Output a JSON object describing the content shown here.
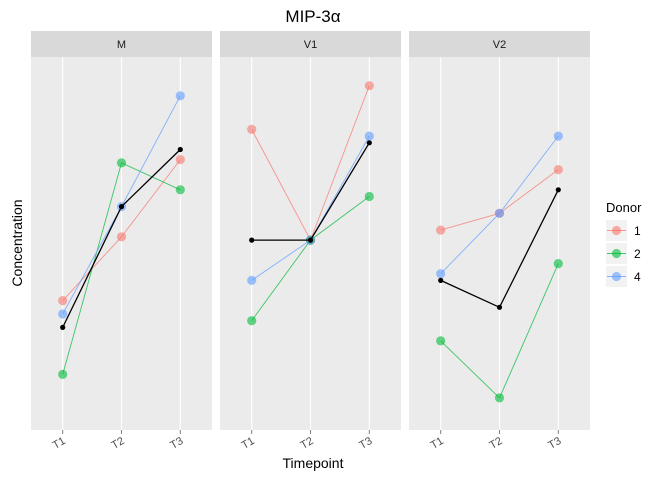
{
  "chart_data": {
    "type": "line",
    "title": "MIP-3α",
    "xlabel": "Timepoint",
    "ylabel": "Concentration",
    "categories": [
      "T1",
      "T2",
      "T3"
    ],
    "ylim": [
      0,
      100
    ],
    "grid": true,
    "legend": {
      "title": "Donor",
      "placement": "right"
    },
    "panels": [
      {
        "name": "M",
        "series": [
          {
            "name": "1",
            "color": "#F8766D",
            "values": [
              33,
              52,
              75
            ]
          },
          {
            "name": "2",
            "color": "#00BA38",
            "values": [
              11,
              74,
              66
            ]
          },
          {
            "name": "4",
            "color": "#619CFF",
            "values": [
              29,
              61,
              94
            ]
          },
          {
            "color": "#000000",
            "values": [
              25,
              61,
              78
            ]
          }
        ]
      },
      {
        "name": "V1",
        "series": [
          {
            "name": "1",
            "color": "#F8766D",
            "values": [
              84,
              51,
              97
            ]
          },
          {
            "name": "2",
            "color": "#00BA38",
            "values": [
              27,
              51,
              64
            ]
          },
          {
            "name": "4",
            "color": "#619CFF",
            "values": [
              39,
              51,
              82
            ]
          },
          {
            "color": "#000000",
            "values": [
              51,
              51,
              80
            ]
          }
        ]
      },
      {
        "name": "V2",
        "series": [
          {
            "name": "1",
            "color": "#F8766D",
            "values": [
              54,
              59,
              72
            ]
          },
          {
            "name": "2",
            "color": "#00BA38",
            "values": [
              21,
              4,
              44
            ]
          },
          {
            "name": "4",
            "color": "#619CFF",
            "values": [
              41,
              59,
              82
            ]
          },
          {
            "color": "#000000",
            "values": [
              39,
              31,
              66
            ]
          }
        ]
      }
    ]
  }
}
